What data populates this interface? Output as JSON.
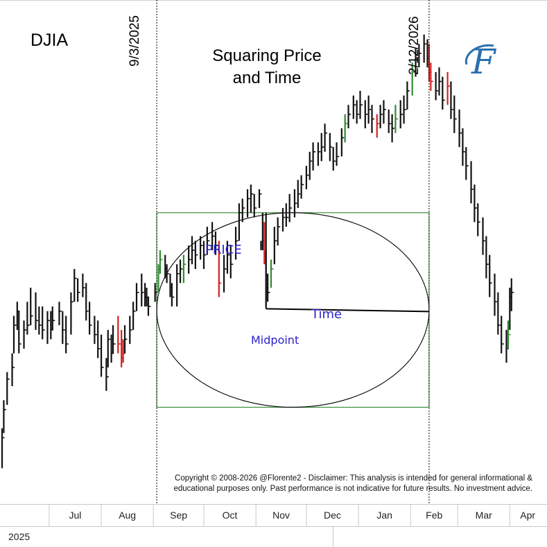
{
  "chart_data": {
    "type": "bar",
    "title": "Squaring Price and Time",
    "title_lines": [
      "Squaring Price",
      "and Time"
    ],
    "ticker": "DJIA",
    "year_label": "2025",
    "x_axis": {
      "type": "date",
      "range": [
        "2025-06-03",
        "2026-04-12"
      ]
    },
    "months": [
      {
        "label": "Jul",
        "start": "2025-07-01"
      },
      {
        "label": "Aug",
        "start": "2025-08-01"
      },
      {
        "label": "Sep",
        "start": "2025-09-01"
      },
      {
        "label": "Oct",
        "start": "2025-10-01"
      },
      {
        "label": "Nov",
        "start": "2025-11-01"
      },
      {
        "label": "Dec",
        "start": "2025-12-01"
      },
      {
        "label": "Jan",
        "start": "2026-01-01"
      },
      {
        "label": "Feb",
        "start": "2026-02-01"
      },
      {
        "label": "Mar",
        "start": "2026-03-01"
      },
      {
        "label": "Apr",
        "start": "2026-04-01"
      }
    ],
    "y_range": [
      43000,
      51400
    ],
    "grid": false,
    "vertical_markers": [
      {
        "date": "2025-09-03",
        "label": "9/3/2025"
      },
      {
        "date": "2026-02-12",
        "label": "2/12/2026"
      }
    ],
    "square": {
      "start": "2025-09-03",
      "end": "2026-02-12",
      "low": 44650,
      "high": 48800
    },
    "midpoint": {
      "date": "2025-11-07",
      "price": 46750,
      "time_end": "2026-02-12",
      "top": 48800
    },
    "annotations": {
      "price": "PRICE",
      "time": "Time",
      "midpoint": "Midpoint"
    },
    "colors": {
      "bar": "#111111",
      "up": "#2e8b2e",
      "down": "#d42020",
      "square": "#3c8c3c",
      "circle": "#000000"
    },
    "bars": [
      {
        "d": "2025-06-03",
        "h": 44200,
        "l": 43350,
        "c": 44000,
        "k": "n"
      },
      {
        "d": "2025-06-04",
        "h": 44800,
        "l": 44100,
        "c": 44600,
        "k": "n"
      },
      {
        "d": "2025-06-06",
        "h": 45400,
        "l": 44700,
        "c": 45250,
        "k": "n"
      },
      {
        "d": "2025-06-09",
        "h": 45800,
        "l": 45100,
        "c": 45500,
        "k": "n"
      },
      {
        "d": "2025-06-10",
        "h": 46600,
        "l": 45800,
        "c": 46400,
        "k": "n"
      },
      {
        "d": "2025-06-12",
        "h": 46900,
        "l": 46300,
        "c": 46700,
        "k": "n"
      },
      {
        "d": "2025-06-13",
        "h": 46700,
        "l": 45800,
        "c": 46000,
        "k": "n"
      },
      {
        "d": "2025-06-16",
        "h": 46500,
        "l": 45900,
        "c": 46300,
        "k": "n"
      },
      {
        "d": "2025-06-18",
        "h": 46900,
        "l": 46200,
        "c": 46400,
        "k": "n"
      },
      {
        "d": "2025-06-20",
        "h": 47200,
        "l": 46400,
        "c": 46600,
        "k": "n"
      },
      {
        "d": "2025-06-23",
        "h": 47100,
        "l": 46300,
        "c": 46500,
        "k": "n"
      },
      {
        "d": "2025-06-25",
        "h": 46800,
        "l": 46200,
        "c": 46400,
        "k": "n"
      },
      {
        "d": "2025-06-27",
        "h": 46800,
        "l": 46100,
        "c": 46300,
        "k": "n"
      },
      {
        "d": "2025-06-30",
        "h": 46700,
        "l": 46000,
        "c": 46500,
        "k": "n"
      },
      {
        "d": "2025-07-02",
        "h": 46700,
        "l": 46100,
        "c": 46300,
        "k": "n"
      },
      {
        "d": "2025-07-03",
        "h": 46800,
        "l": 46300,
        "c": 46500,
        "k": "n"
      },
      {
        "d": "2025-07-07",
        "h": 46900,
        "l": 46400,
        "c": 46700,
        "k": "n"
      },
      {
        "d": "2025-07-09",
        "h": 46700,
        "l": 46000,
        "c": 46300,
        "k": "n"
      },
      {
        "d": "2025-07-11",
        "h": 46600,
        "l": 45800,
        "c": 46000,
        "k": "n"
      },
      {
        "d": "2025-07-14",
        "h": 47100,
        "l": 46200,
        "c": 46900,
        "k": "n"
      },
      {
        "d": "2025-07-16",
        "h": 47600,
        "l": 46900,
        "c": 47400,
        "k": "n"
      },
      {
        "d": "2025-07-18",
        "h": 47400,
        "l": 46900,
        "c": 47100,
        "k": "n"
      },
      {
        "d": "2025-07-21",
        "h": 47500,
        "l": 47000,
        "c": 47200,
        "k": "n"
      },
      {
        "d": "2025-07-23",
        "h": 47300,
        "l": 46500,
        "c": 46700,
        "k": "n"
      },
      {
        "d": "2025-07-25",
        "h": 46900,
        "l": 46200,
        "c": 46400,
        "k": "n"
      },
      {
        "d": "2025-07-28",
        "h": 46600,
        "l": 46000,
        "c": 46200,
        "k": "n"
      },
      {
        "d": "2025-07-30",
        "h": 46500,
        "l": 45700,
        "c": 45900,
        "k": "n"
      },
      {
        "d": "2025-08-01",
        "h": 46200,
        "l": 45300,
        "c": 45500,
        "k": "n"
      },
      {
        "d": "2025-08-04",
        "h": 45700,
        "l": 45000,
        "c": 45300,
        "k": "n"
      },
      {
        "d": "2025-08-05",
        "h": 46300,
        "l": 45500,
        "c": 46100,
        "k": "n"
      },
      {
        "d": "2025-08-07",
        "h": 46200,
        "l": 45600,
        "c": 45800,
        "k": "n"
      },
      {
        "d": "2025-08-08",
        "h": 46400,
        "l": 45800,
        "c": 46000,
        "k": "n"
      },
      {
        "d": "2025-08-11",
        "h": 46600,
        "l": 45800,
        "c": 46000,
        "k": "d"
      },
      {
        "d": "2025-08-13",
        "h": 46300,
        "l": 45500,
        "c": 45700,
        "k": "d"
      },
      {
        "d": "2025-08-14",
        "h": 46100,
        "l": 45600,
        "c": 45800,
        "k": "d"
      },
      {
        "d": "2025-08-15",
        "h": 46400,
        "l": 45800,
        "c": 46100,
        "k": "n"
      },
      {
        "d": "2025-08-18",
        "h": 46600,
        "l": 46000,
        "c": 46300,
        "k": "n"
      },
      {
        "d": "2025-08-20",
        "h": 46900,
        "l": 46300,
        "c": 46700,
        "k": "n"
      },
      {
        "d": "2025-08-22",
        "h": 47300,
        "l": 46700,
        "c": 47100,
        "k": "n"
      },
      {
        "d": "2025-08-25",
        "h": 47500,
        "l": 46800,
        "c": 47100,
        "k": "n"
      },
      {
        "d": "2025-08-27",
        "h": 47300,
        "l": 46800,
        "c": 47000,
        "k": "n"
      },
      {
        "d": "2025-08-28",
        "h": 47200,
        "l": 46800,
        "c": 47000,
        "k": "n"
      },
      {
        "d": "2025-08-29",
        "h": 47000,
        "l": 46600,
        "c": 46800,
        "k": "n"
      },
      {
        "d": "2025-09-02",
        "h": 47300,
        "l": 46900,
        "c": 47100,
        "k": "n"
      },
      {
        "d": "2025-09-04",
        "h": 47700,
        "l": 47100,
        "c": 47600,
        "k": "u"
      },
      {
        "d": "2025-09-05",
        "h": 48000,
        "l": 47500,
        "c": 47800,
        "k": "u"
      },
      {
        "d": "2025-09-08",
        "h": 47900,
        "l": 47400,
        "c": 47600,
        "k": "n"
      },
      {
        "d": "2025-09-09",
        "h": 47700,
        "l": 47300,
        "c": 47500,
        "k": "n"
      },
      {
        "d": "2025-09-11",
        "h": 47500,
        "l": 47000,
        "c": 47200,
        "k": "n"
      },
      {
        "d": "2025-09-12",
        "h": 47300,
        "l": 46800,
        "c": 47000,
        "k": "n"
      },
      {
        "d": "2025-09-15",
        "h": 47700,
        "l": 46800,
        "c": 47500,
        "k": "n"
      },
      {
        "d": "2025-09-17",
        "h": 47800,
        "l": 47300,
        "c": 47600,
        "k": "n"
      },
      {
        "d": "2025-09-19",
        "h": 47900,
        "l": 47300,
        "c": 47700,
        "k": "u"
      },
      {
        "d": "2025-09-22",
        "h": 48100,
        "l": 47500,
        "c": 47800,
        "k": "n"
      },
      {
        "d": "2025-09-24",
        "h": 48300,
        "l": 47700,
        "c": 48000,
        "k": "n"
      },
      {
        "d": "2025-09-26",
        "h": 48200,
        "l": 47600,
        "c": 47900,
        "k": "n"
      },
      {
        "d": "2025-09-29",
        "h": 48300,
        "l": 47800,
        "c": 48100,
        "k": "n"
      },
      {
        "d": "2025-10-01",
        "h": 48200,
        "l": 47600,
        "c": 47900,
        "k": "n"
      },
      {
        "d": "2025-10-03",
        "h": 48500,
        "l": 47900,
        "c": 48200,
        "k": "n"
      },
      {
        "d": "2025-10-06",
        "h": 48600,
        "l": 48000,
        "c": 48300,
        "k": "n"
      },
      {
        "d": "2025-10-08",
        "h": 48400,
        "l": 47900,
        "c": 48100,
        "k": "n"
      },
      {
        "d": "2025-10-10",
        "h": 48200,
        "l": 47000,
        "c": 47300,
        "k": "d"
      },
      {
        "d": "2025-10-13",
        "h": 47900,
        "l": 47100,
        "c": 47600,
        "k": "n"
      },
      {
        "d": "2025-10-15",
        "h": 48200,
        "l": 47500,
        "c": 47900,
        "k": "n"
      },
      {
        "d": "2025-10-17",
        "h": 48100,
        "l": 47400,
        "c": 47700,
        "k": "n"
      },
      {
        "d": "2025-10-20",
        "h": 48500,
        "l": 47800,
        "c": 48200,
        "k": "n"
      },
      {
        "d": "2025-10-22",
        "h": 49000,
        "l": 48200,
        "c": 48800,
        "k": "n"
      },
      {
        "d": "2025-10-24",
        "h": 49100,
        "l": 48600,
        "c": 48900,
        "k": "n"
      },
      {
        "d": "2025-10-27",
        "h": 49300,
        "l": 48700,
        "c": 49100,
        "k": "n"
      },
      {
        "d": "2025-10-29",
        "h": 49400,
        "l": 48800,
        "c": 49200,
        "k": "n"
      },
      {
        "d": "2025-10-31",
        "h": 49200,
        "l": 48700,
        "c": 48900,
        "k": "n"
      },
      {
        "d": "2025-11-03",
        "h": 49300,
        "l": 48900,
        "c": 49200,
        "k": "n"
      },
      {
        "d": "2025-11-04",
        "h": 48200,
        "l": 48000,
        "c": 48100,
        "k": "n"
      },
      {
        "d": "2025-11-05",
        "h": 48800,
        "l": 48000,
        "c": 48200,
        "k": "n"
      },
      {
        "d": "2025-11-06",
        "h": 48600,
        "l": 47700,
        "c": 47900,
        "k": "d"
      },
      {
        "d": "2025-11-07",
        "h": 48000,
        "l": 46800,
        "c": 47200,
        "k": "n"
      },
      {
        "d": "2025-11-08",
        "h": 47500,
        "l": 46900,
        "c": 47100,
        "k": "n"
      },
      {
        "d": "2025-11-10",
        "h": 47800,
        "l": 47200,
        "c": 47600,
        "k": "u"
      },
      {
        "d": "2025-11-12",
        "h": 48500,
        "l": 47700,
        "c": 48200,
        "k": "n"
      },
      {
        "d": "2025-11-14",
        "h": 48700,
        "l": 48100,
        "c": 48500,
        "k": "n"
      },
      {
        "d": "2025-11-17",
        "h": 48900,
        "l": 48400,
        "c": 48700,
        "k": "n"
      },
      {
        "d": "2025-11-19",
        "h": 49000,
        "l": 48500,
        "c": 48700,
        "k": "n"
      },
      {
        "d": "2025-11-21",
        "h": 49200,
        "l": 48600,
        "c": 48900,
        "k": "n"
      },
      {
        "d": "2025-11-24",
        "h": 49300,
        "l": 48700,
        "c": 49000,
        "k": "n"
      },
      {
        "d": "2025-11-26",
        "h": 49500,
        "l": 48900,
        "c": 49200,
        "k": "n"
      },
      {
        "d": "2025-11-28",
        "h": 49600,
        "l": 49100,
        "c": 49400,
        "k": "n"
      },
      {
        "d": "2025-12-01",
        "h": 49800,
        "l": 49300,
        "c": 49600,
        "k": "n"
      },
      {
        "d": "2025-12-03",
        "h": 50100,
        "l": 49500,
        "c": 49900,
        "k": "n"
      },
      {
        "d": "2025-12-05",
        "h": 50300,
        "l": 49700,
        "c": 50100,
        "k": "n"
      },
      {
        "d": "2025-12-08",
        "h": 50300,
        "l": 49800,
        "c": 50100,
        "k": "n"
      },
      {
        "d": "2025-12-10",
        "h": 50500,
        "l": 49900,
        "c": 50200,
        "k": "n"
      },
      {
        "d": "2025-12-12",
        "h": 50700,
        "l": 50100,
        "c": 50500,
        "k": "n"
      },
      {
        "d": "2025-12-15",
        "h": 50500,
        "l": 49900,
        "c": 50200,
        "k": "n"
      },
      {
        "d": "2025-12-17",
        "h": 50200,
        "l": 49700,
        "c": 49900,
        "k": "n"
      },
      {
        "d": "2025-12-19",
        "h": 50300,
        "l": 49800,
        "c": 50000,
        "k": "n"
      },
      {
        "d": "2025-12-22",
        "h": 50600,
        "l": 50000,
        "c": 50400,
        "k": "n"
      },
      {
        "d": "2025-12-24",
        "h": 50900,
        "l": 50300,
        "c": 50700,
        "k": "u"
      },
      {
        "d": "2025-12-26",
        "h": 51100,
        "l": 50600,
        "c": 50900,
        "k": "n"
      },
      {
        "d": "2025-12-29",
        "h": 51300,
        "l": 50800,
        "c": 51100,
        "k": "n"
      },
      {
        "d": "2025-12-31",
        "h": 51200,
        "l": 50700,
        "c": 50900,
        "k": "n"
      },
      {
        "d": "2026-01-02",
        "h": 51400,
        "l": 50800,
        "c": 51100,
        "k": "n"
      },
      {
        "d": "2026-01-05",
        "h": 51200,
        "l": 50600,
        "c": 50900,
        "k": "n"
      },
      {
        "d": "2026-01-07",
        "h": 51300,
        "l": 50700,
        "c": 51000,
        "k": "n"
      },
      {
        "d": "2026-01-09",
        "h": 51100,
        "l": 50500,
        "c": 50800,
        "k": "n"
      },
      {
        "d": "2026-01-12",
        "h": 50900,
        "l": 50400,
        "c": 50700,
        "k": "d"
      },
      {
        "d": "2026-01-14",
        "h": 51100,
        "l": 50600,
        "c": 50900,
        "k": "n"
      },
      {
        "d": "2026-01-16",
        "h": 51200,
        "l": 50700,
        "c": 51000,
        "k": "n"
      },
      {
        "d": "2026-01-19",
        "h": 51000,
        "l": 50500,
        "c": 50700,
        "k": "n"
      },
      {
        "d": "2026-01-21",
        "h": 50900,
        "l": 50300,
        "c": 50600,
        "k": "n"
      },
      {
        "d": "2026-01-23",
        "h": 51100,
        "l": 50500,
        "c": 50800,
        "k": "u"
      },
      {
        "d": "2026-01-26",
        "h": 51200,
        "l": 50600,
        "c": 50900,
        "k": "n"
      },
      {
        "d": "2026-01-28",
        "h": 51300,
        "l": 50700,
        "c": 51000,
        "k": "n"
      },
      {
        "d": "2026-01-30",
        "h": 51600,
        "l": 51000,
        "c": 51400,
        "k": "n"
      },
      {
        "d": "2026-02-02",
        "h": 52000,
        "l": 51300,
        "c": 51800,
        "k": "u"
      },
      {
        "d": "2026-02-04",
        "h": 52300,
        "l": 51700,
        "c": 52100,
        "k": "n"
      },
      {
        "d": "2026-02-06",
        "h": 52400,
        "l": 51900,
        "c": 52200,
        "k": "n"
      },
      {
        "d": "2026-02-09",
        "h": 52600,
        "l": 52000,
        "c": 52400,
        "k": "n"
      },
      {
        "d": "2026-02-11",
        "h": 52500,
        "l": 51900,
        "c": 52100,
        "k": "n"
      },
      {
        "d": "2026-02-12",
        "h": 52400,
        "l": 51600,
        "c": 51800,
        "k": "d"
      },
      {
        "d": "2026-02-13",
        "h": 52000,
        "l": 51400,
        "c": 51600,
        "k": "d"
      },
      {
        "d": "2026-02-16",
        "h": 51800,
        "l": 51200,
        "c": 51400,
        "k": "n"
      },
      {
        "d": "2026-02-18",
        "h": 51900,
        "l": 51300,
        "c": 51600,
        "k": "n"
      },
      {
        "d": "2026-02-20",
        "h": 51700,
        "l": 51000,
        "c": 51200,
        "k": "n"
      },
      {
        "d": "2026-02-23",
        "h": 51800,
        "l": 51100,
        "c": 51500,
        "k": "d"
      },
      {
        "d": "2026-02-25",
        "h": 51600,
        "l": 50800,
        "c": 51000,
        "k": "n"
      },
      {
        "d": "2026-02-27",
        "h": 51300,
        "l": 50500,
        "c": 50800,
        "k": "n"
      },
      {
        "d": "2026-03-02",
        "h": 51000,
        "l": 50200,
        "c": 50500,
        "k": "n"
      },
      {
        "d": "2026-03-04",
        "h": 50600,
        "l": 49800,
        "c": 50100,
        "k": "n"
      },
      {
        "d": "2026-03-06",
        "h": 50200,
        "l": 49500,
        "c": 49800,
        "k": "n"
      },
      {
        "d": "2026-03-09",
        "h": 49900,
        "l": 49000,
        "c": 49300,
        "k": "n"
      },
      {
        "d": "2026-03-11",
        "h": 49400,
        "l": 48600,
        "c": 48900,
        "k": "n"
      },
      {
        "d": "2026-03-13",
        "h": 49000,
        "l": 48300,
        "c": 48600,
        "k": "n"
      },
      {
        "d": "2026-03-16",
        "h": 48700,
        "l": 47900,
        "c": 48200,
        "k": "n"
      },
      {
        "d": "2026-03-18",
        "h": 48300,
        "l": 47400,
        "c": 47700,
        "k": "n"
      },
      {
        "d": "2026-03-20",
        "h": 47900,
        "l": 47000,
        "c": 47300,
        "k": "n"
      },
      {
        "d": "2026-03-23",
        "h": 47500,
        "l": 46600,
        "c": 46900,
        "k": "n"
      },
      {
        "d": "2026-03-25",
        "h": 47100,
        "l": 46200,
        "c": 46400,
        "k": "n"
      },
      {
        "d": "2026-03-27",
        "h": 46600,
        "l": 45800,
        "c": 46000,
        "k": "n"
      },
      {
        "d": "2026-03-30",
        "h": 46300,
        "l": 45600,
        "c": 45900,
        "k": "n"
      },
      {
        "d": "2026-03-31",
        "h": 46500,
        "l": 45900,
        "c": 46200,
        "k": "u"
      },
      {
        "d": "2026-04-01",
        "h": 47200,
        "l": 46300,
        "c": 47000,
        "k": "n"
      },
      {
        "d": "2026-04-02",
        "h": 47400,
        "l": 46700,
        "c": 47100,
        "k": "n"
      }
    ]
  },
  "copyright": {
    "line1": "Copyright © 2008-2026 @Florente2 - Disclaimer: This analysis is intended for general informational &",
    "line2": "educational purposes only. Past performance is not indicative for future results. No investment advice."
  },
  "logo": {
    "letter": "F",
    "color": "#2a6fb0"
  }
}
